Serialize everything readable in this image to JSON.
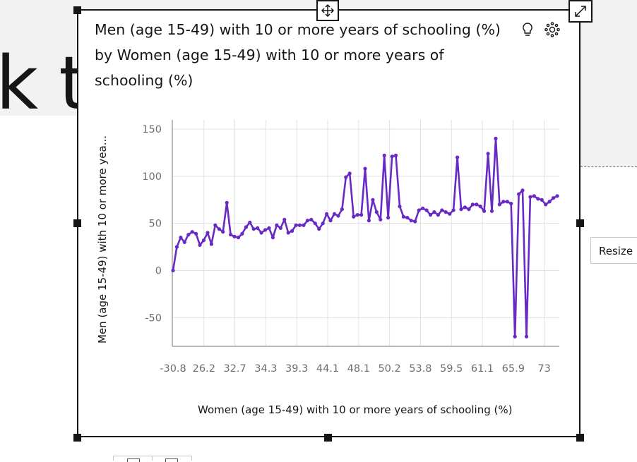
{
  "background": {
    "partial_heading": "k to",
    "resize_tooltip": "Resize"
  },
  "toolbar": {
    "move_icon": "move-icon",
    "expand_icon": "expand-icon",
    "insight_icon": "lightbulb-icon",
    "settings_icon": "settings-icon"
  },
  "colors": {
    "series": "#6929c4",
    "grid": "#e0e0e0",
    "axis": "#8d8d8d",
    "border": "#161616"
  },
  "chart_data": {
    "type": "line",
    "title": "Men (age 15-49) with 10 or more years of schooling (%) by Women (age 15-49) with 10 or more years of schooling (%)",
    "xlabel": "Women (age 15-49) with 10 or more years of schooling (%)",
    "ylabel": "Men (age 15-49) with 10 or more yea...",
    "x_ticks": [
      "-30.8",
      "26.2",
      "32.7",
      "34.3",
      "39.3",
      "44.1",
      "48.1",
      "50.2",
      "53.8",
      "59.5",
      "61.1",
      "65.9",
      "73"
    ],
    "y_ticks": [
      150,
      100,
      50,
      0,
      -50
    ],
    "ylim": [
      -80,
      160
    ],
    "grid": true,
    "legend": "none",
    "series": [
      {
        "values": [
          0,
          25,
          35,
          30,
          38,
          41,
          39,
          27,
          32,
          40,
          28,
          48,
          44,
          41,
          72,
          38,
          36,
          35,
          39,
          46,
          51,
          44,
          45,
          40,
          43,
          45,
          35,
          48,
          45,
          54,
          40,
          42,
          48,
          48,
          48,
          53,
          54,
          50,
          44,
          50,
          60,
          53,
          60,
          58,
          65,
          99,
          103,
          57,
          59,
          59,
          108,
          53,
          75,
          62,
          54,
          122,
          56,
          121,
          122,
          68,
          57,
          56,
          53,
          52,
          64,
          66,
          64,
          59,
          62,
          59,
          64,
          62,
          60,
          64,
          120,
          65,
          67,
          65,
          70,
          70,
          68,
          63,
          124,
          63,
          140,
          70,
          73,
          73,
          71,
          -70,
          81,
          85,
          -70,
          78,
          79,
          76,
          75,
          70,
          73,
          77,
          79
        ]
      }
    ]
  }
}
